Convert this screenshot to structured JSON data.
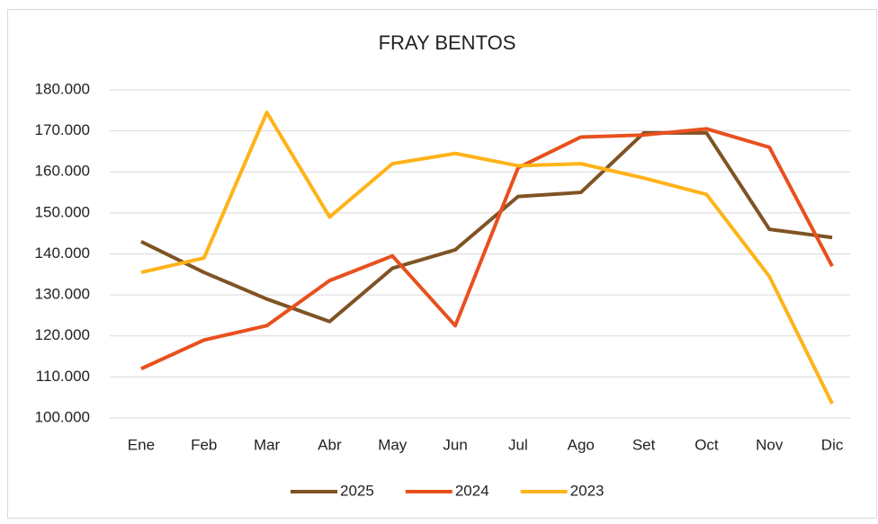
{
  "chart_data": {
    "type": "line",
    "title": "FRAY BENTOS",
    "categories": [
      "Ene",
      "Feb",
      "Mar",
      "Abr",
      "May",
      "Jun",
      "Jul",
      "Ago",
      "Set",
      "Oct",
      "Nov",
      "Dic"
    ],
    "series": [
      {
        "name": "2025",
        "color": "#7f5324",
        "values": [
          143000,
          135500,
          129000,
          123500,
          136500,
          141000,
          154000,
          155000,
          169500,
          169500,
          146000,
          144000
        ]
      },
      {
        "name": "2024",
        "color": "#e8501e",
        "values": [
          112000,
          119000,
          122500,
          133500,
          139500,
          122500,
          161000,
          168500,
          169000,
          170500,
          166000,
          137000
        ]
      },
      {
        "name": "2023",
        "color": "#ffb31a",
        "values": [
          135500,
          139000,
          174500,
          149000,
          162000,
          164500,
          161500,
          162000,
          158500,
          154500,
          134500,
          103500
        ]
      }
    ],
    "ylim": [
      100000,
      180000
    ],
    "yticks": [
      {
        "value": 100000,
        "label": "100.000"
      },
      {
        "value": 110000,
        "label": "110.000"
      },
      {
        "value": 120000,
        "label": "120.000"
      },
      {
        "value": 130000,
        "label": "130.000"
      },
      {
        "value": 140000,
        "label": "140.000"
      },
      {
        "value": 150000,
        "label": "150.000"
      },
      {
        "value": 160000,
        "label": "160.000"
      },
      {
        "value": 170000,
        "label": "170.000"
      },
      {
        "value": 180000,
        "label": "180.000"
      }
    ],
    "grid": true,
    "legend": "bottom"
  }
}
